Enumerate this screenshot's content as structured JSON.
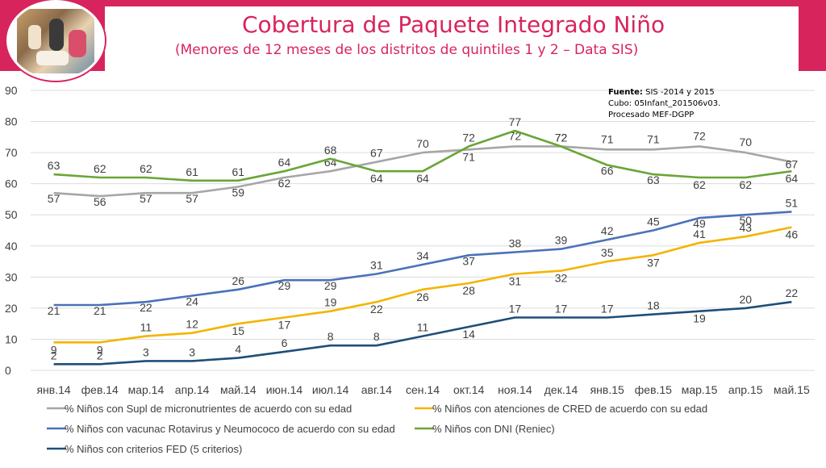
{
  "header": {
    "title": "Cobertura de Paquete Integrado Niño",
    "subtitle": "(Menores de 12 meses de los distritos de quintiles 1 y 2 – Data SIS)"
  },
  "source": {
    "label": "Fuente:",
    "line1": "SIS -2014 y 2015",
    "line2": "Cubo: 05Infant_201506v03.",
    "line3": "Procesado MEF-DGPP"
  },
  "colors": {
    "header": "#d8245d",
    "supl": "#a6a6a6",
    "cred": "#f4b400",
    "vacunac": "#4a72b8",
    "dni": "#6aa536",
    "fed": "#1f4e79"
  },
  "chart_data": {
    "type": "line",
    "categories": [
      "янв.14",
      "фев.14",
      "мар.14",
      "апр.14",
      "май.14",
      "июн.14",
      "июл.14",
      "авг.14",
      "сен.14",
      "окт.14",
      "ноя.14",
      "дек.14",
      "янв.15",
      "фев.15",
      "мар.15",
      "апр.15",
      "май.15"
    ],
    "ylim": [
      0,
      90
    ],
    "yticks": [
      0,
      10,
      20,
      30,
      40,
      50,
      60,
      70,
      80,
      90
    ],
    "grid": true,
    "legend_position": "bottom",
    "series": [
      {
        "name": "% Niños con Supl de micronutrientes de acuerdo con su edad",
        "color": "#a6a6a6",
        "values": [
          57,
          56,
          57,
          57,
          59,
          62,
          64,
          67,
          70,
          71,
          72,
          72,
          71,
          71,
          72,
          70,
          67
        ]
      },
      {
        "name": "% Niños  con atenciones de CRED de acuerdo con su edad",
        "color": "#f4b400",
        "values": [
          9,
          9,
          11,
          12,
          15,
          17,
          19,
          22,
          26,
          28,
          31,
          32,
          35,
          37,
          41,
          43,
          46
        ]
      },
      {
        "name": "% Niños con vacunac Rotavirus y Neumococo de acuerdo con su edad",
        "color": "#4a72b8",
        "values": [
          21,
          21,
          22,
          24,
          26,
          29,
          29,
          31,
          34,
          37,
          38,
          39,
          42,
          45,
          49,
          50,
          51
        ]
      },
      {
        "name": "% Niños con DNI (Reniec)",
        "color": "#6aa536",
        "values": [
          63,
          62,
          62,
          61,
          61,
          64,
          68,
          64,
          64,
          72,
          77,
          72,
          66,
          63,
          62,
          62,
          64
        ]
      },
      {
        "name": "% Niños con criterios FED (5 criterios)",
        "color": "#1f4e79",
        "values": [
          2,
          2,
          3,
          3,
          4,
          6,
          8,
          8,
          11,
          14,
          17,
          17,
          17,
          18,
          19,
          20,
          22
        ]
      }
    ]
  }
}
